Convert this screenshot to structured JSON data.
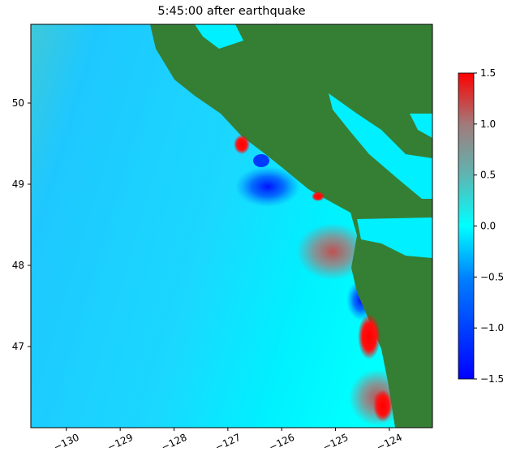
{
  "title": "5:45:00 after earthquake",
  "chart_data": {
    "type": "heatmap",
    "title": "5:45:00 after earthquake",
    "xlim": [
      -130.66,
      -123.2
    ],
    "ylim": [
      46.0,
      50.97
    ],
    "x_ticks": [
      "−130",
      "−129",
      "−128",
      "−127",
      "−126",
      "−125",
      "−124"
    ],
    "x_tick_values": [
      -130,
      -129,
      -128,
      -127,
      -126,
      -125,
      -124
    ],
    "y_ticks": [
      "47",
      "48",
      "49",
      "50"
    ],
    "y_tick_values": [
      47,
      48,
      49,
      50
    ],
    "colorbar": {
      "range": [
        -1.5,
        1.5
      ],
      "ticks": [
        "1.5",
        "1.0",
        "0.5",
        "0.0",
        "−0.5",
        "−1.0",
        "−1.5"
      ],
      "tick_values": [
        1.5,
        1.0,
        0.5,
        0.0,
        -0.5,
        -1.0,
        -1.5
      ],
      "colors": {
        "min": "#0000ff",
        "neg": "#0080ff",
        "zero": "#00ffff",
        "pos": "#5fb4b0",
        "mid_high": "#a07c7c",
        "max": "#ff0000"
      }
    },
    "land_color": "#357f35",
    "grid": false
  }
}
